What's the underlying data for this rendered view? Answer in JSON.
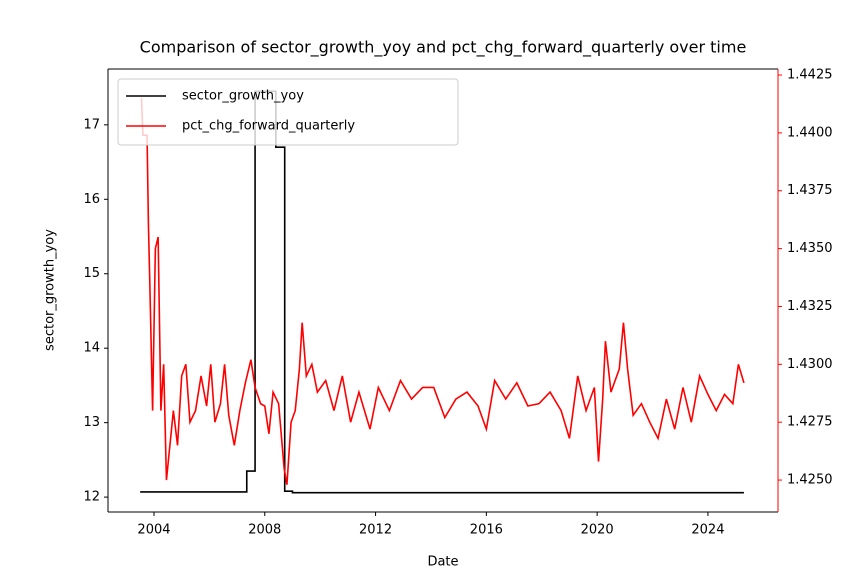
{
  "chart_data": {
    "type": "line",
    "title": "Comparison of sector_growth_yoy and pct_chg_forward_quarterly over time",
    "xlabel": "Date",
    "ylabel": "sector_growth_yoy",
    "xlim": [
      2002.34,
      2026.53
    ],
    "xticks": [
      2004,
      2008,
      2012,
      2016,
      2020,
      2024
    ],
    "ylim": [
      11.8,
      17.75
    ],
    "yticks": [
      12,
      13,
      14,
      15,
      16,
      17
    ],
    "y2lim": [
      1.42362,
      1.44276
    ],
    "y2ticks": [
      {
        "value": 1.425,
        "label": "1.4250"
      },
      1.4275,
      {
        "value": 1.43,
        "label": "1.4300"
      },
      1.4325,
      {
        "value": 1.435,
        "label": "1.4350"
      },
      1.4375,
      {
        "value": 1.44,
        "label": "1.4400"
      },
      1.4425
    ],
    "legend": "upper left",
    "series": [
      {
        "name": "sector_growth_yoy",
        "color": "#000000",
        "x": [
          2003.5,
          2007.35,
          2007.35,
          2007.65,
          2007.65,
          2008.4,
          2008.4,
          2008.72,
          2008.72,
          2009.0,
          2009.0,
          2025.3
        ],
        "values": [
          12.07,
          12.07,
          12.35,
          12.35,
          17.45,
          17.45,
          16.7,
          16.7,
          12.08,
          12.08,
          12.06,
          12.06
        ]
      },
      {
        "name": "pct_chg_forward_quarterly",
        "color": "#ff0000",
        "axis": "y2",
        "x": [
          2003.55,
          2003.6,
          2003.75,
          2003.8,
          2003.85,
          2003.95,
          2004.05,
          2004.15,
          2004.25,
          2004.35,
          2004.45,
          2004.55,
          2004.7,
          2004.85,
          2005.0,
          2005.15,
          2005.3,
          2005.5,
          2005.7,
          2005.9,
          2006.05,
          2006.2,
          2006.4,
          2006.55,
          2006.7,
          2006.9,
          2007.1,
          2007.3,
          2007.5,
          2007.65,
          2007.85,
          2008.0,
          2008.15,
          2008.3,
          2008.5,
          2008.7,
          2008.8,
          2008.95,
          2009.1,
          2009.25,
          2009.35,
          2009.5,
          2009.7,
          2009.9,
          2010.2,
          2010.5,
          2010.8,
          2011.1,
          2011.4,
          2011.8,
          2012.1,
          2012.5,
          2012.9,
          2013.3,
          2013.7,
          2014.1,
          2014.5,
          2014.9,
          2015.3,
          2015.7,
          2016.0,
          2016.3,
          2016.7,
          2017.1,
          2017.5,
          2017.9,
          2018.3,
          2018.7,
          2019.0,
          2019.3,
          2019.6,
          2019.9,
          2020.05,
          2020.2,
          2020.3,
          2020.5,
          2020.8,
          2020.95,
          2021.1,
          2021.3,
          2021.6,
          2021.9,
          2022.2,
          2022.5,
          2022.8,
          2023.1,
          2023.4,
          2023.7,
          2024.0,
          2024.3,
          2024.6,
          2024.9,
          2025.1,
          2025.3
        ],
        "values": [
          1.4415,
          1.4399,
          1.4399,
          1.436,
          1.4335,
          1.428,
          1.435,
          1.4355,
          1.428,
          1.43,
          1.425,
          1.4262,
          1.428,
          1.4265,
          1.4295,
          1.43,
          1.4275,
          1.428,
          1.4295,
          1.4282,
          1.43,
          1.4275,
          1.4283,
          1.43,
          1.4278,
          1.4265,
          1.428,
          1.4292,
          1.4302,
          1.429,
          1.4283,
          1.4282,
          1.427,
          1.4288,
          1.4283,
          1.4255,
          1.4248,
          1.4275,
          1.428,
          1.4298,
          1.4318,
          1.4295,
          1.43,
          1.4288,
          1.4293,
          1.428,
          1.4295,
          1.4275,
          1.4288,
          1.4272,
          1.429,
          1.428,
          1.4293,
          1.4285,
          1.429,
          1.429,
          1.4277,
          1.4285,
          1.4288,
          1.4282,
          1.4272,
          1.4293,
          1.4285,
          1.4292,
          1.4282,
          1.4283,
          1.4288,
          1.428,
          1.4268,
          1.4295,
          1.428,
          1.429,
          1.4258,
          1.4285,
          1.431,
          1.4288,
          1.4298,
          1.4318,
          1.4298,
          1.4278,
          1.4283,
          1.4275,
          1.4268,
          1.4285,
          1.4272,
          1.429,
          1.4275,
          1.4295,
          1.4287,
          1.428,
          1.4287,
          1.4283,
          1.43,
          1.4292
        ]
      }
    ]
  }
}
